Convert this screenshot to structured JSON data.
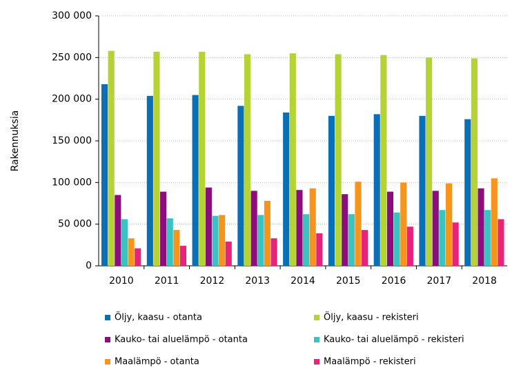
{
  "chart_data": {
    "type": "bar",
    "y_label": "Rakennuksia",
    "categories": [
      "2010",
      "2011",
      "2012",
      "2013",
      "2014",
      "2015",
      "2016",
      "2017",
      "2018"
    ],
    "series": [
      {
        "name": "Öljy, kaasu - otanta",
        "color": "#0b6fb5",
        "values": [
          218000,
          204000,
          205000,
          192000,
          184000,
          180000,
          182000,
          180000,
          176000
        ]
      },
      {
        "name": "Öljy, kaasu - rekisteri",
        "color": "#b5d334",
        "values": [
          258000,
          257000,
          257000,
          254000,
          255000,
          254000,
          253000,
          250000,
          249000
        ]
      },
      {
        "name": "Kauko- tai aluelämpö - otanta",
        "color": "#8b0e7b",
        "values": [
          85000,
          89000,
          94000,
          90000,
          91000,
          86000,
          89000,
          90000,
          93000
        ]
      },
      {
        "name": "Kauko- tai aluelämpö - rekisteri",
        "color": "#39c4c2",
        "values": [
          56000,
          57000,
          60000,
          61000,
          62000,
          62000,
          64000,
          67000,
          67000
        ]
      },
      {
        "name": "Maalämpö - otanta",
        "color": "#f7941d",
        "values": [
          33000,
          43000,
          61000,
          78000,
          93000,
          101000,
          100000,
          99000,
          105000
        ]
      },
      {
        "name": "Maalämpö - rekisteri",
        "color": "#e8247a",
        "values": [
          21000,
          24000,
          29000,
          33000,
          39000,
          43000,
          47000,
          52000,
          56000
        ]
      }
    ],
    "ylim": [
      0,
      300000
    ],
    "yticks": [
      0,
      {
        "value": 50000,
        "label": "50 000"
      },
      {
        "value": 100000,
        "label": "100 000"
      },
      {
        "value": 150000,
        "label": "150 000"
      },
      {
        "value": 200000,
        "label": "200 000"
      },
      {
        "value": 250000,
        "label": "250 000"
      },
      {
        "value": 300000,
        "label": "300 000"
      }
    ],
    "grid": true,
    "legend": "bottom"
  }
}
